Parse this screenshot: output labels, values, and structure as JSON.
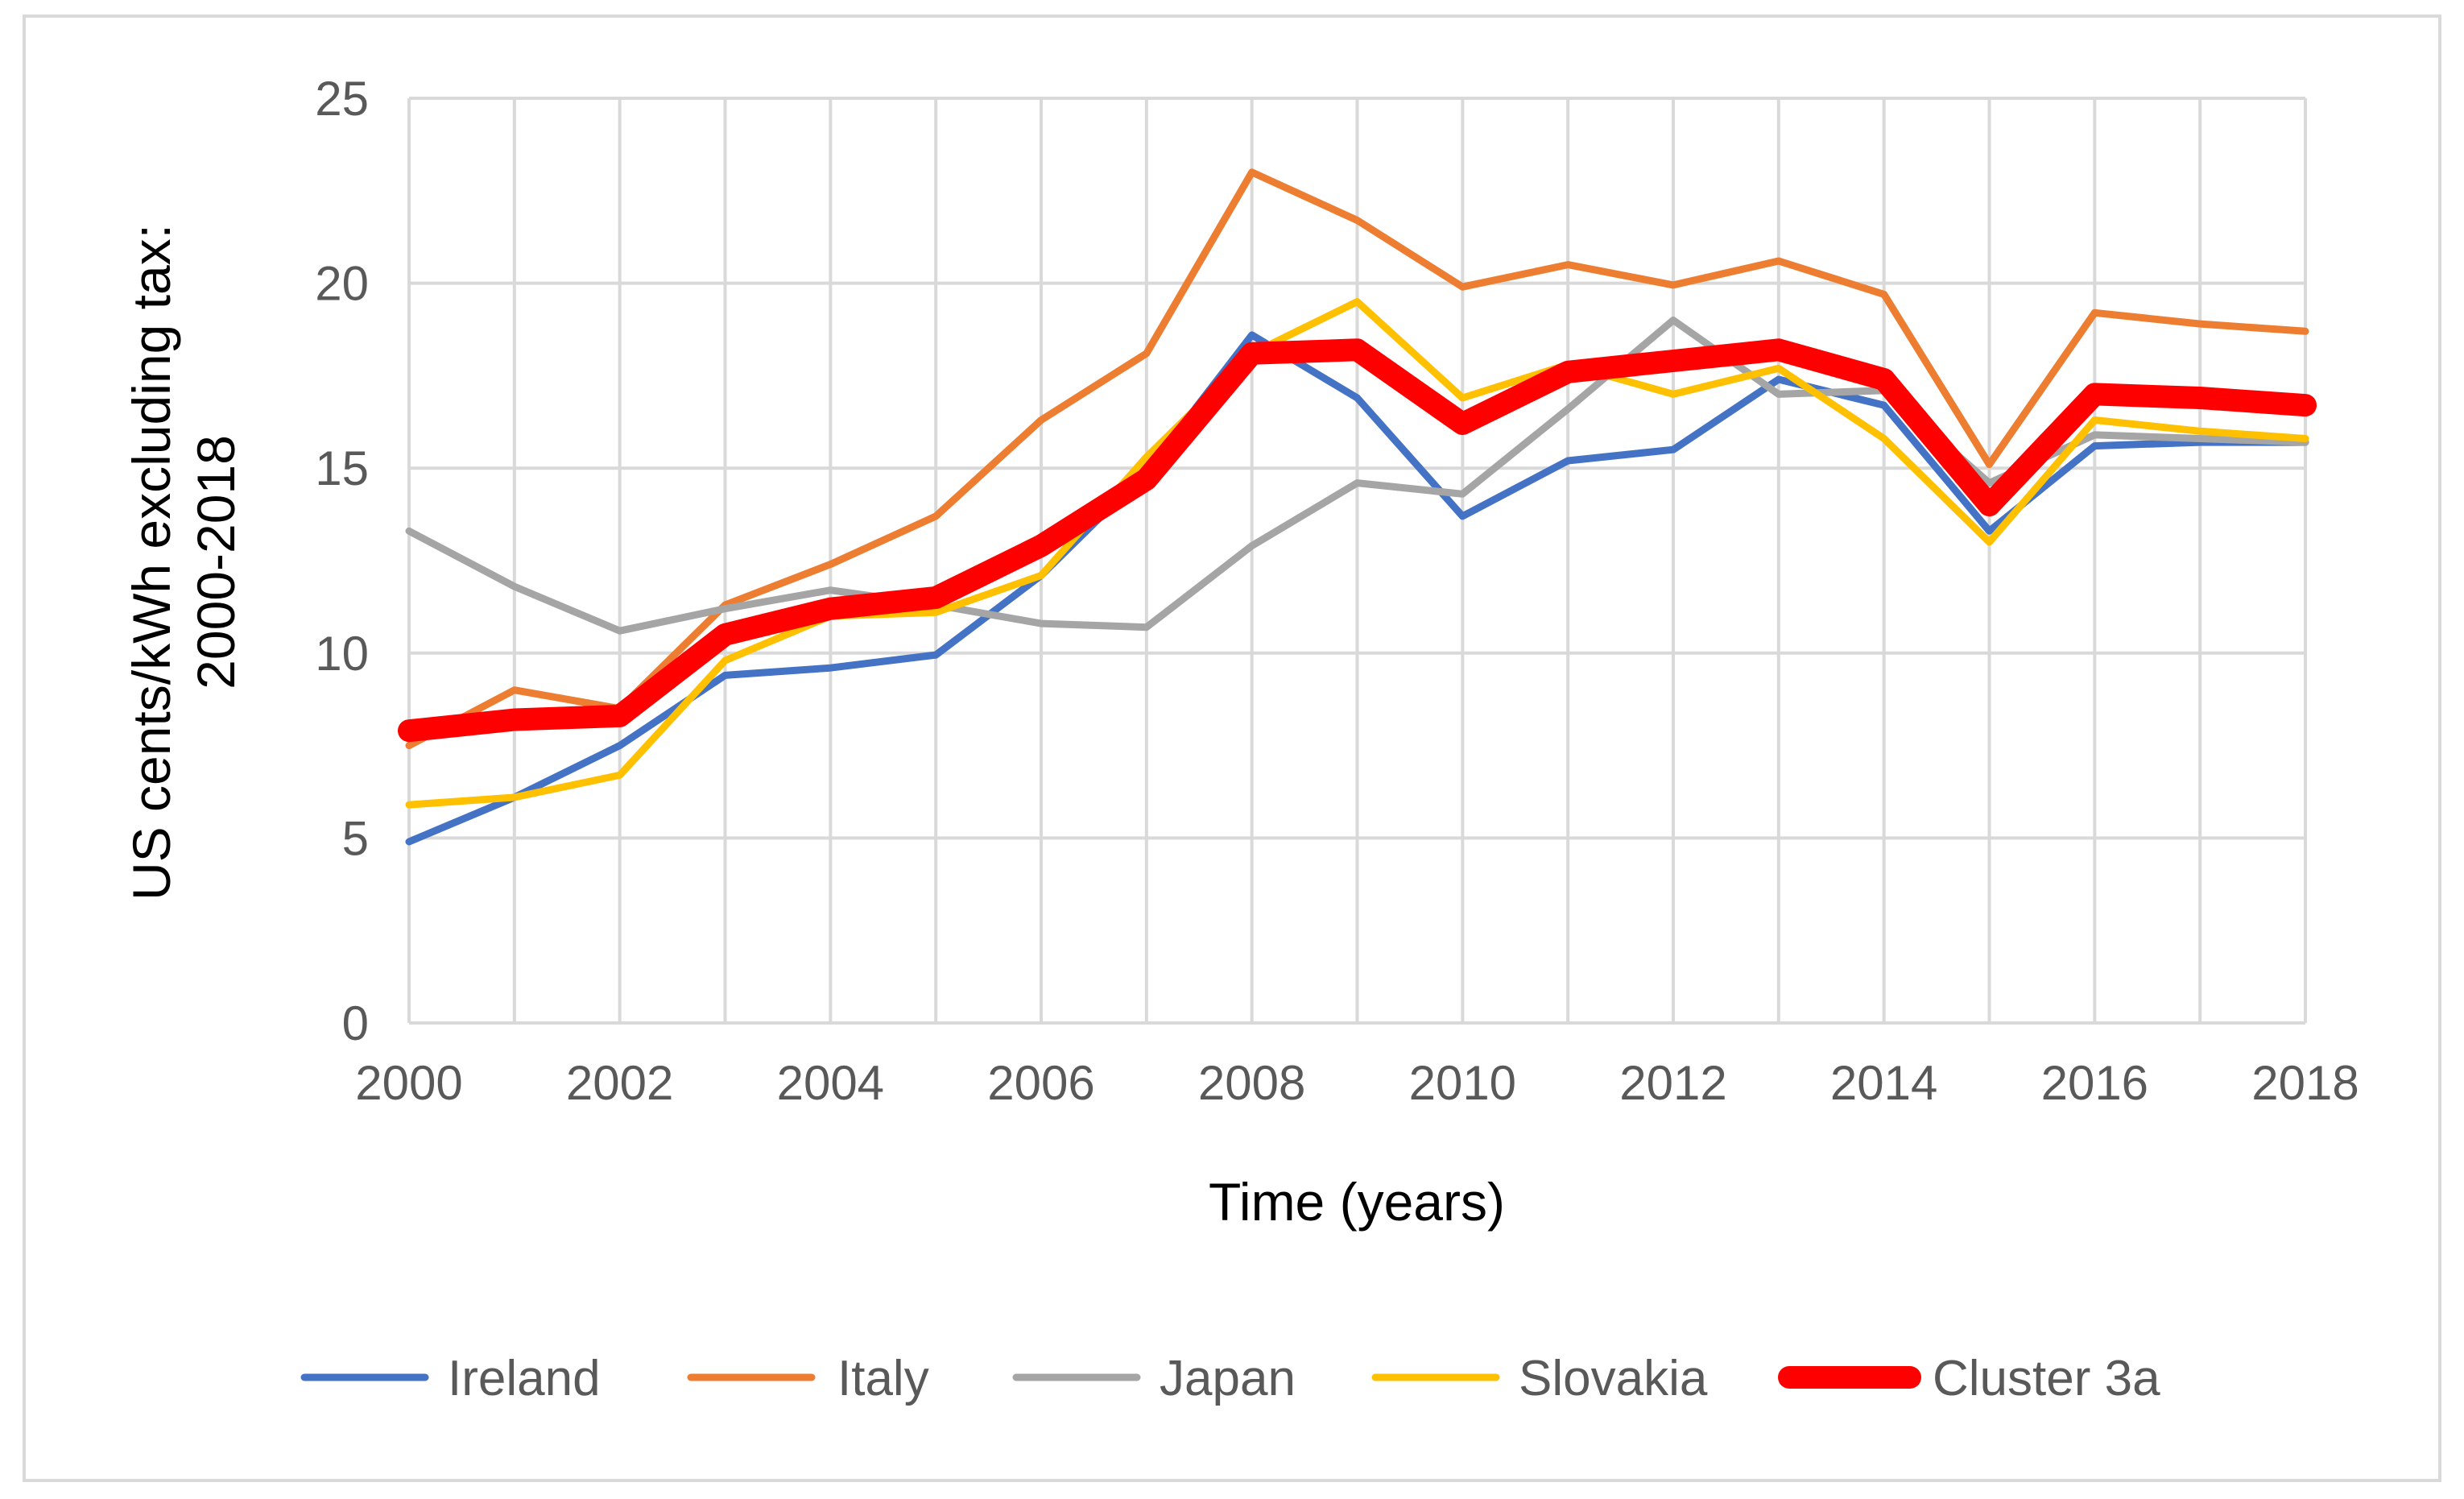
{
  "chart_data": {
    "type": "line",
    "title": "",
    "xlabel": "Time (years)",
    "ylabel_lines": [
      "US cents/kWh  excluding tax:",
      "2000-2018"
    ],
    "x": [
      2000,
      2001,
      2002,
      2003,
      2004,
      2005,
      2006,
      2007,
      2008,
      2009,
      2010,
      2011,
      2012,
      2013,
      2014,
      2015,
      2016,
      2017,
      2018
    ],
    "x_tick_labels": [
      "2000",
      "2002",
      "2004",
      "2006",
      "2008",
      "2010",
      "2012",
      "2014",
      "2016",
      "2018"
    ],
    "x_tick_values": [
      2000,
      2002,
      2004,
      2006,
      2008,
      2010,
      2012,
      2014,
      2016,
      2018
    ],
    "y_tick_labels": [
      "0",
      "5",
      "10",
      "15",
      "20",
      "25"
    ],
    "y_tick_values": [
      0,
      5,
      10,
      15,
      20,
      25
    ],
    "xlim": [
      2000,
      2018
    ],
    "ylim": [
      0,
      25
    ],
    "grid": true,
    "legend_position": "bottom",
    "series": [
      {
        "name": "Ireland",
        "color": "#4472C4",
        "values": [
          4.9,
          6.1,
          7.5,
          9.4,
          9.6,
          9.95,
          12.1,
          14.9,
          18.6,
          16.9,
          13.7,
          15.2,
          15.5,
          17.4,
          16.7,
          13.3,
          15.6,
          15.7,
          15.7
        ]
      },
      {
        "name": "Italy",
        "color": "#ED7D31",
        "values": [
          7.5,
          9.0,
          8.5,
          11.3,
          12.4,
          13.7,
          16.3,
          18.1,
          23.0,
          21.7,
          19.9,
          20.5,
          19.95,
          20.6,
          19.7,
          15.1,
          19.2,
          18.9,
          18.7
        ]
      },
      {
        "name": "Japan",
        "color": "#A5A5A5",
        "values": [
          13.3,
          11.8,
          10.6,
          11.2,
          11.7,
          11.3,
          10.8,
          10.7,
          12.9,
          14.6,
          14.3,
          16.6,
          19.0,
          17.0,
          17.1,
          14.6,
          15.9,
          15.8,
          15.7
        ]
      },
      {
        "name": "Slovakia",
        "color": "#FFC000",
        "values": [
          5.9,
          6.1,
          6.7,
          9.8,
          11.0,
          11.1,
          12.1,
          15.3,
          18.1,
          19.5,
          16.9,
          17.8,
          17.0,
          17.7,
          15.8,
          13.0,
          16.3,
          16.0,
          15.8
        ]
      },
      {
        "name": "Cluster 3a",
        "color": "#FF0000",
        "values": [
          7.9,
          8.2,
          8.3,
          10.5,
          11.2,
          11.5,
          12.9,
          14.7,
          18.1,
          18.2,
          16.2,
          17.6,
          17.9,
          18.2,
          17.4,
          14.0,
          17.0,
          16.9,
          16.7
        ]
      }
    ]
  }
}
